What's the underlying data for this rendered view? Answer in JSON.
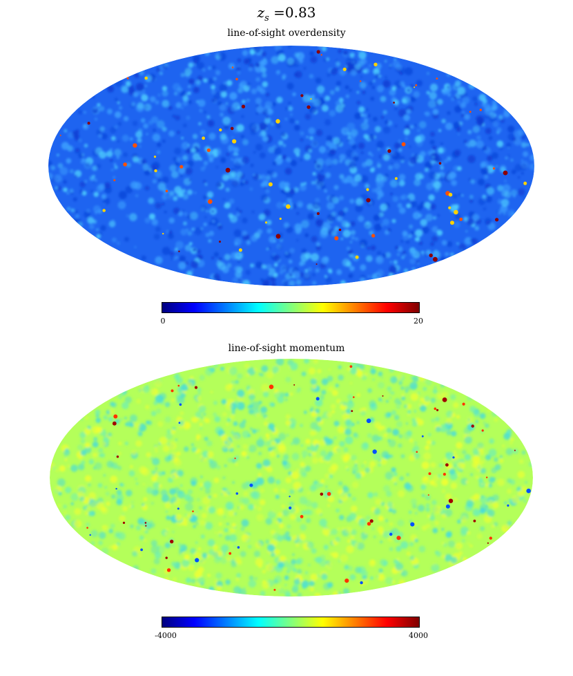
{
  "figure": {
    "title_var": "z",
    "title_sub": "s",
    "title_eq": "=0.83"
  },
  "panels": [
    {
      "title": "line-of-sight overdensity",
      "colorbar": {
        "min_label": "0",
        "max_label": "20",
        "colormap": "jet"
      },
      "background_color": "#1e64f0",
      "mottle_colors": [
        "#0a3cd2",
        "#3ca0ff",
        "#50d2ff"
      ],
      "hotspot_colors": [
        "#ffd200",
        "#ff5000",
        "#8c0000"
      ]
    },
    {
      "title": "line-of-sight momentum",
      "colorbar": {
        "min_label": "-4000",
        "max_label": "4000",
        "colormap": "jet"
      },
      "background_color": "#b4ff5a",
      "mottle_colors": [
        "#6ef0b4",
        "#f0ff32",
        "#46dcdc"
      ],
      "hotspot_colors": [
        "#ff3200",
        "#a00000",
        "#0050ff"
      ]
    }
  ]
}
